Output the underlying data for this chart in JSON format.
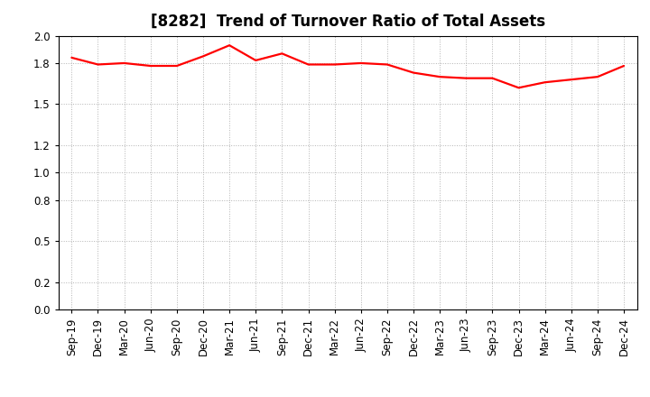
{
  "title": "[8282]  Trend of Turnover Ratio of Total Assets",
  "x_labels": [
    "Sep-19",
    "Dec-19",
    "Mar-20",
    "Jun-20",
    "Sep-20",
    "Dec-20",
    "Mar-21",
    "Jun-21",
    "Sep-21",
    "Dec-21",
    "Mar-22",
    "Jun-22",
    "Sep-22",
    "Dec-22",
    "Mar-23",
    "Jun-23",
    "Sep-23",
    "Dec-23",
    "Mar-24",
    "Jun-24",
    "Sep-24",
    "Dec-24"
  ],
  "values": [
    1.84,
    1.79,
    1.8,
    1.78,
    1.78,
    1.85,
    1.93,
    1.82,
    1.87,
    1.79,
    1.79,
    1.8,
    1.79,
    1.73,
    1.7,
    1.69,
    1.69,
    1.62,
    1.66,
    1.68,
    1.7,
    1.78
  ],
  "line_color": "#FF0000",
  "line_width": 1.6,
  "ylim_min": 0.0,
  "ylim_max": 2.0,
  "ytick_values": [
    0.0,
    0.2,
    0.5,
    0.8,
    1.0,
    1.2,
    1.5,
    1.8,
    2.0
  ],
  "background_color": "#ffffff",
  "grid_color": "#aaaaaa",
  "title_fontsize": 12,
  "tick_fontsize": 8.5
}
